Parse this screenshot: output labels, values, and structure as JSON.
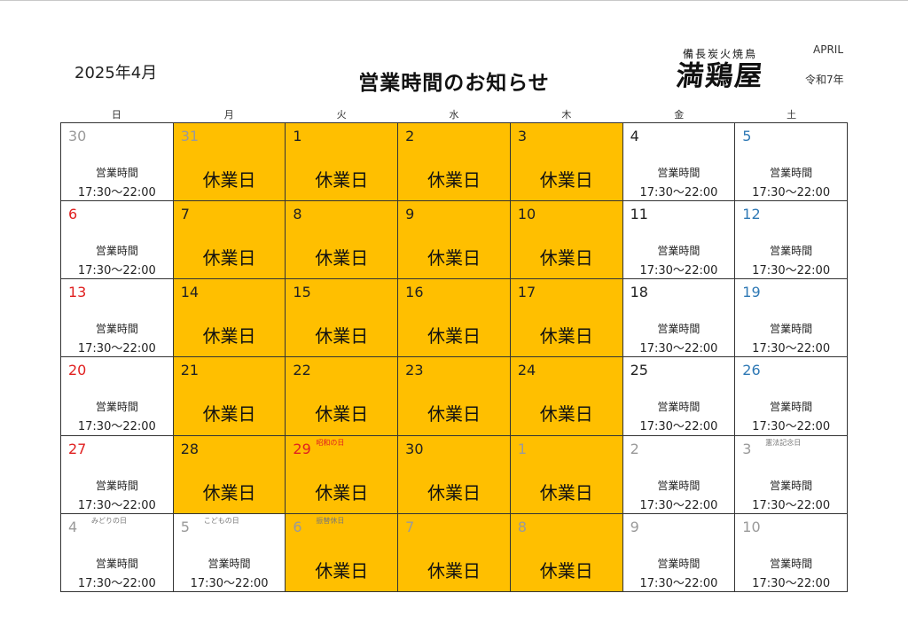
{
  "header": {
    "month_label": "2025年4月",
    "title": "営業時間のお知らせ",
    "logo_sub": "備長炭火焼鳥",
    "logo_main": "満鶏屋",
    "month_en": "APRIL",
    "era": "令和7年"
  },
  "weekdays": [
    "日",
    "月",
    "火",
    "水",
    "木",
    "金",
    "土"
  ],
  "hours_label": "営業時間",
  "hours_time": "17:30～22:00",
  "closed_label": "休業日",
  "cells": [
    {
      "day": "30",
      "dim": true,
      "closed": false
    },
    {
      "day": "31",
      "dim": true,
      "closed": true
    },
    {
      "day": "1",
      "closed": true
    },
    {
      "day": "2",
      "closed": true
    },
    {
      "day": "3",
      "closed": true
    },
    {
      "day": "4",
      "closed": false
    },
    {
      "day": "5",
      "sat": true,
      "closed": false
    },
    {
      "day": "6",
      "sun": true,
      "closed": false
    },
    {
      "day": "7",
      "closed": true
    },
    {
      "day": "8",
      "closed": true
    },
    {
      "day": "9",
      "closed": true
    },
    {
      "day": "10",
      "closed": true
    },
    {
      "day": "11",
      "closed": false
    },
    {
      "day": "12",
      "sat": true,
      "closed": false
    },
    {
      "day": "13",
      "sun": true,
      "closed": false
    },
    {
      "day": "14",
      "closed": true
    },
    {
      "day": "15",
      "closed": true
    },
    {
      "day": "16",
      "closed": true
    },
    {
      "day": "17",
      "closed": true
    },
    {
      "day": "18",
      "closed": false
    },
    {
      "day": "19",
      "sat": true,
      "closed": false
    },
    {
      "day": "20",
      "sun": true,
      "closed": false
    },
    {
      "day": "21",
      "closed": true
    },
    {
      "day": "22",
      "closed": true
    },
    {
      "day": "23",
      "closed": true
    },
    {
      "day": "24",
      "closed": true
    },
    {
      "day": "25",
      "closed": false
    },
    {
      "day": "26",
      "sat": true,
      "closed": false
    },
    {
      "day": "27",
      "sun": true,
      "closed": false
    },
    {
      "day": "28",
      "closed": true
    },
    {
      "day": "29",
      "sun": true,
      "closed": true,
      "note": "昭和の日",
      "note_red": true
    },
    {
      "day": "30",
      "closed": true
    },
    {
      "day": "1",
      "dim": true,
      "closed": true
    },
    {
      "day": "2",
      "dim": true,
      "closed": false
    },
    {
      "day": "3",
      "dim": true,
      "closed": false,
      "note": "憲法記念日"
    },
    {
      "day": "4",
      "dim": true,
      "closed": false,
      "note": "みどりの日"
    },
    {
      "day": "5",
      "dim": true,
      "closed": false,
      "note": "こどもの日"
    },
    {
      "day": "6",
      "dim": true,
      "closed": true,
      "note": "振替休日"
    },
    {
      "day": "7",
      "dim": true,
      "closed": true
    },
    {
      "day": "8",
      "dim": true,
      "closed": true
    },
    {
      "day": "9",
      "dim": true,
      "closed": false
    },
    {
      "day": "10",
      "dim": true,
      "closed": false
    }
  ],
  "colors": {
    "closed_bg": "#ffbf00",
    "sunday": "#e02020",
    "saturday": "#2f79b5",
    "other_month": "#9a9a9a"
  }
}
